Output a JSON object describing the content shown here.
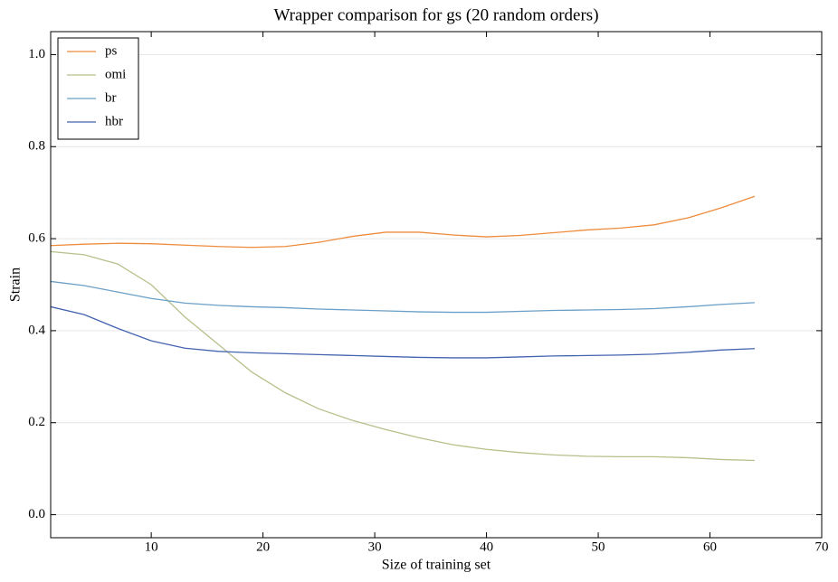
{
  "chart_data": {
    "type": "line",
    "title": "Wrapper comparison for gs (20 random orders)",
    "x_label": "Size of training set",
    "y_label": "Strain",
    "x": [
      1,
      4,
      7,
      10,
      13,
      16,
      19,
      22,
      25,
      28,
      31,
      34,
      37,
      40,
      43,
      46,
      49,
      52,
      55,
      58,
      61,
      64
    ],
    "series": [
      {
        "name": "ps",
        "color": "#ee8c3e",
        "values": [
          0.585,
          0.588,
          0.59,
          0.589,
          0.586,
          0.583,
          0.581,
          0.583,
          0.592,
          0.605,
          0.614,
          0.614,
          0.608,
          0.604,
          0.607,
          0.613,
          0.619,
          0.623,
          0.63,
          0.645,
          0.667,
          0.692
        ]
      },
      {
        "name": "omi",
        "color": "#b5c08a",
        "values": [
          0.572,
          0.565,
          0.545,
          0.5,
          0.43,
          0.37,
          0.31,
          0.265,
          0.23,
          0.205,
          0.185,
          0.167,
          0.152,
          0.142,
          0.135,
          0.13,
          0.127,
          0.126,
          0.126,
          0.124,
          0.12,
          0.118
        ]
      },
      {
        "name": "br",
        "color": "#6a9fc7",
        "values": [
          0.507,
          0.498,
          0.484,
          0.47,
          0.46,
          0.455,
          0.452,
          0.45,
          0.447,
          0.445,
          0.443,
          0.441,
          0.44,
          0.44,
          0.442,
          0.444,
          0.445,
          0.446,
          0.448,
          0.452,
          0.457,
          0.461
        ]
      },
      {
        "name": "hbr",
        "color": "#4463b0",
        "values": [
          0.452,
          0.435,
          0.405,
          0.378,
          0.362,
          0.355,
          0.352,
          0.35,
          0.348,
          0.346,
          0.344,
          0.342,
          0.341,
          0.341,
          0.343,
          0.345,
          0.346,
          0.347,
          0.349,
          0.353,
          0.358,
          0.361
        ]
      }
    ],
    "xlim": [
      1,
      70
    ],
    "xticks": [
      10,
      20,
      30,
      40,
      50,
      60,
      70
    ],
    "ylim": [
      -0.05,
      1.05
    ],
    "yticks": [
      {
        "value": 0,
        "label": "0.0"
      },
      0.2,
      0.4,
      0.6,
      0.8,
      {
        "value": 1,
        "label": "1.0"
      }
    ],
    "grid": true,
    "legend": "upper left"
  }
}
